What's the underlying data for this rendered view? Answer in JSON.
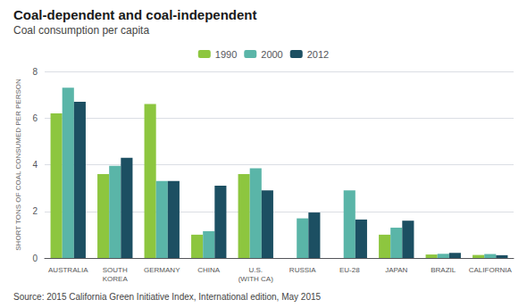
{
  "chart_data": {
    "type": "bar",
    "title": "Coal-dependent and coal-independent",
    "subtitle": "Coal consumption per capita",
    "source": "Source: 2015 California Green Initiative Index, International edition, May 2015",
    "ylabel": "SHORT TONS OF COAL CONSUMED PER PERSON",
    "categories": [
      "AUSTRALIA",
      "SOUTH\nKOREA",
      "GERMANY",
      "CHINA",
      "U.S.\n(WITH CA)",
      "RUSSIA",
      "EU-28",
      "JAPAN",
      "BRAZIL",
      "CALIFORNIA"
    ],
    "series": [
      {
        "name": "1990",
        "color": "#8dc63f",
        "values": [
          6.2,
          3.6,
          6.6,
          1.0,
          3.6,
          0.0,
          0.0,
          1.0,
          0.15,
          0.13
        ]
      },
      {
        "name": "2000",
        "color": "#5ab5a8",
        "values": [
          7.3,
          3.95,
          3.3,
          1.15,
          3.85,
          1.7,
          2.9,
          1.3,
          0.18,
          0.17
        ]
      },
      {
        "name": "2012",
        "color": "#1c4f62",
        "values": [
          6.7,
          4.3,
          3.3,
          3.1,
          2.9,
          1.95,
          1.65,
          1.6,
          0.22,
          0.12
        ]
      }
    ],
    "ylim": [
      0,
      8
    ],
    "yticks": [
      0,
      2,
      4,
      6,
      8
    ],
    "grid": true,
    "legend": "top"
  }
}
